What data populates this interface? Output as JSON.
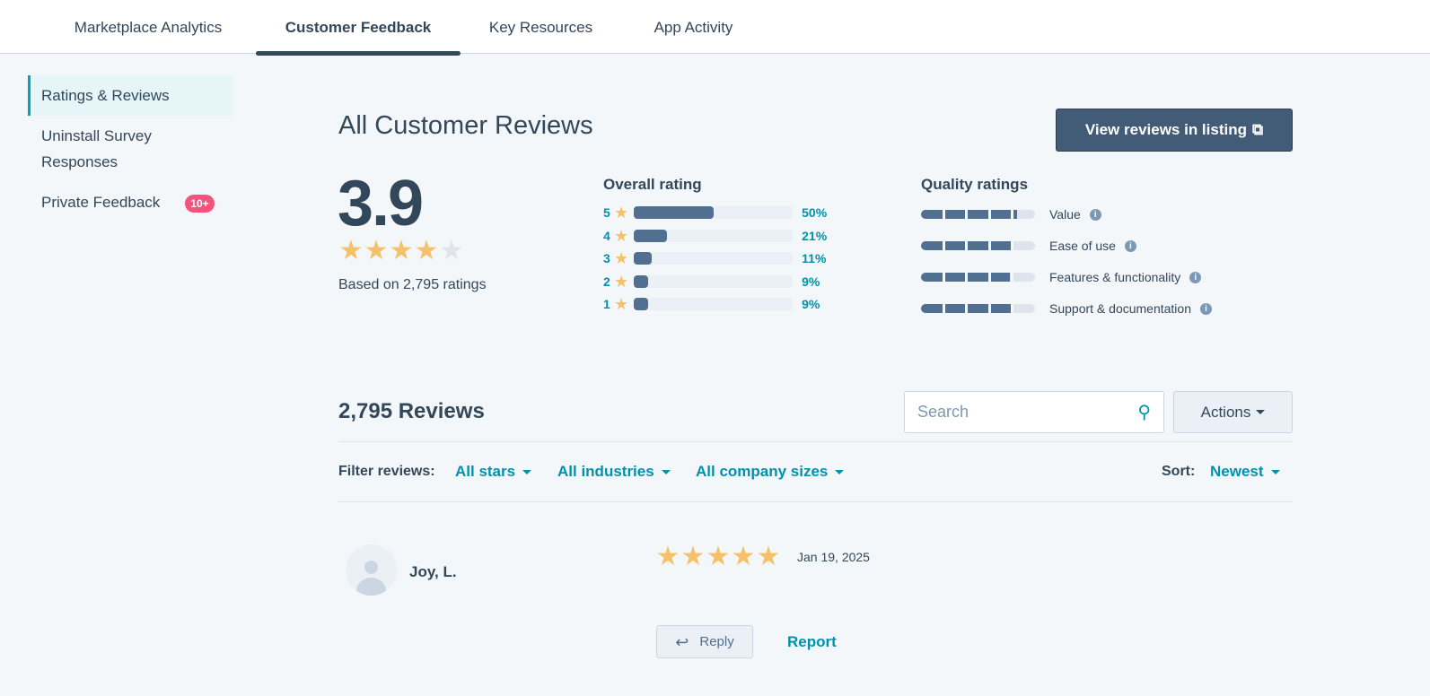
{
  "tabs": [
    "Marketplace Analytics",
    "Customer Feedback",
    "Key Resources",
    "App Activity"
  ],
  "active_tab": "Customer Feedback",
  "sidebar": {
    "items": [
      {
        "label": "Ratings & Reviews"
      },
      {
        "label": "Uninstall Survey Responses"
      },
      {
        "label": "Private Feedback",
        "badge": "10+"
      }
    ]
  },
  "header": {
    "title": "All Customer Reviews",
    "view_button": "View reviews in listing"
  },
  "summary": {
    "score": "3.9",
    "stars": 3.9,
    "based_on": "Based on 2,795 ratings"
  },
  "overall": {
    "title": "Overall rating",
    "rows": [
      {
        "star": "5",
        "pct": "50%",
        "value": 50
      },
      {
        "star": "4",
        "pct": "21%",
        "value": 21
      },
      {
        "star": "3",
        "pct": "11%",
        "value": 11
      },
      {
        "star": "2",
        "pct": "9%",
        "value": 9
      },
      {
        "star": "1",
        "pct": "9%",
        "value": 9
      }
    ]
  },
  "quality": {
    "title": "Quality ratings",
    "rows": [
      {
        "label": "Value",
        "value": 4.2
      },
      {
        "label": "Ease of use",
        "value": 4.0
      },
      {
        "label": "Features & functionality",
        "value": 3.9
      },
      {
        "label": "Support & documentation",
        "value": 3.95
      }
    ]
  },
  "reviews": {
    "count": "2,795 Reviews",
    "search_placeholder": "Search",
    "actions": "Actions",
    "filter_label": "Filter reviews:",
    "filters": [
      "All stars",
      "All industries",
      "All company sizes"
    ],
    "sort_label": "Sort:",
    "sort_value": "Newest"
  },
  "review": {
    "name": "Joy, L.",
    "stars": 5,
    "date": "Jan 19, 2025",
    "reply": "Reply",
    "report": "Report"
  },
  "colors": {
    "accent": "#0091ae",
    "star": "#f5c26b",
    "bar": "#516f90",
    "badge": "#f2547d"
  }
}
